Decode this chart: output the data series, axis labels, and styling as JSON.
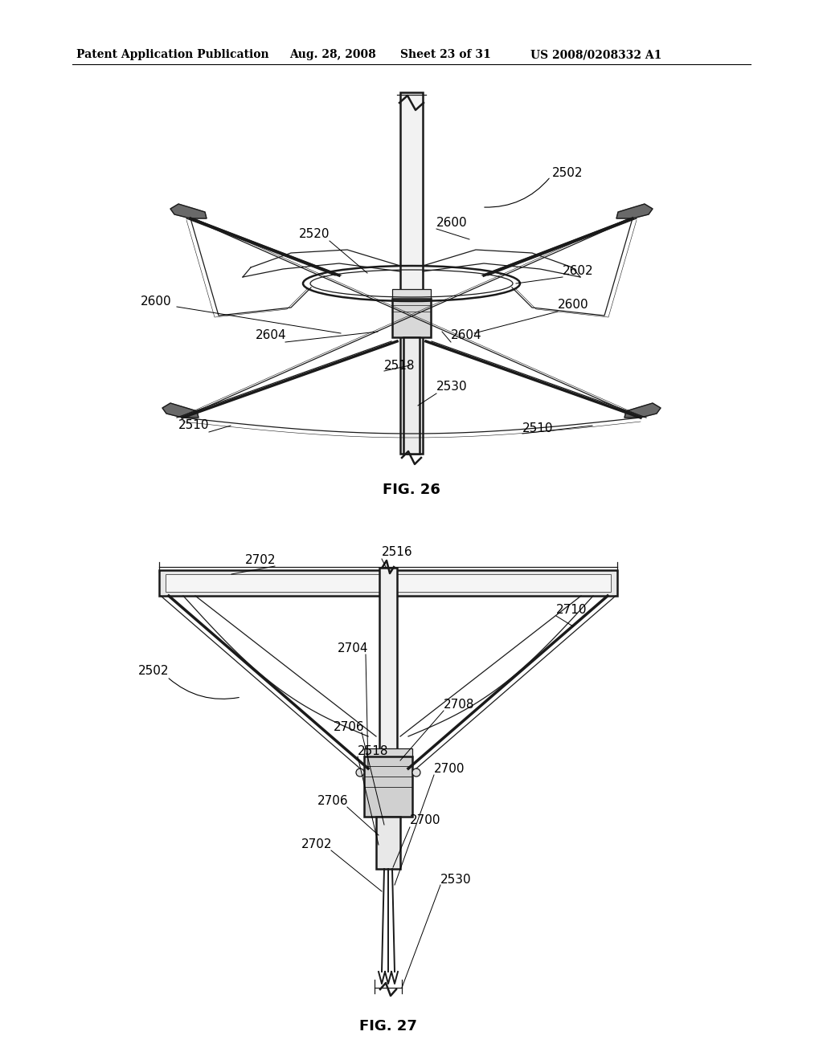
{
  "bg_color": "#ffffff",
  "header_text": "Patent Application Publication",
  "header_date": "Aug. 28, 2008",
  "header_sheet": "Sheet 23 of 31",
  "header_patent": "US 2008/0208332 A1",
  "fig26_label": "FIG. 26",
  "fig27_label": "FIG. 27",
  "line_color": "#1a1a1a",
  "font_size": 11,
  "header_font_size": 10,
  "fig_label_font_size": 13
}
